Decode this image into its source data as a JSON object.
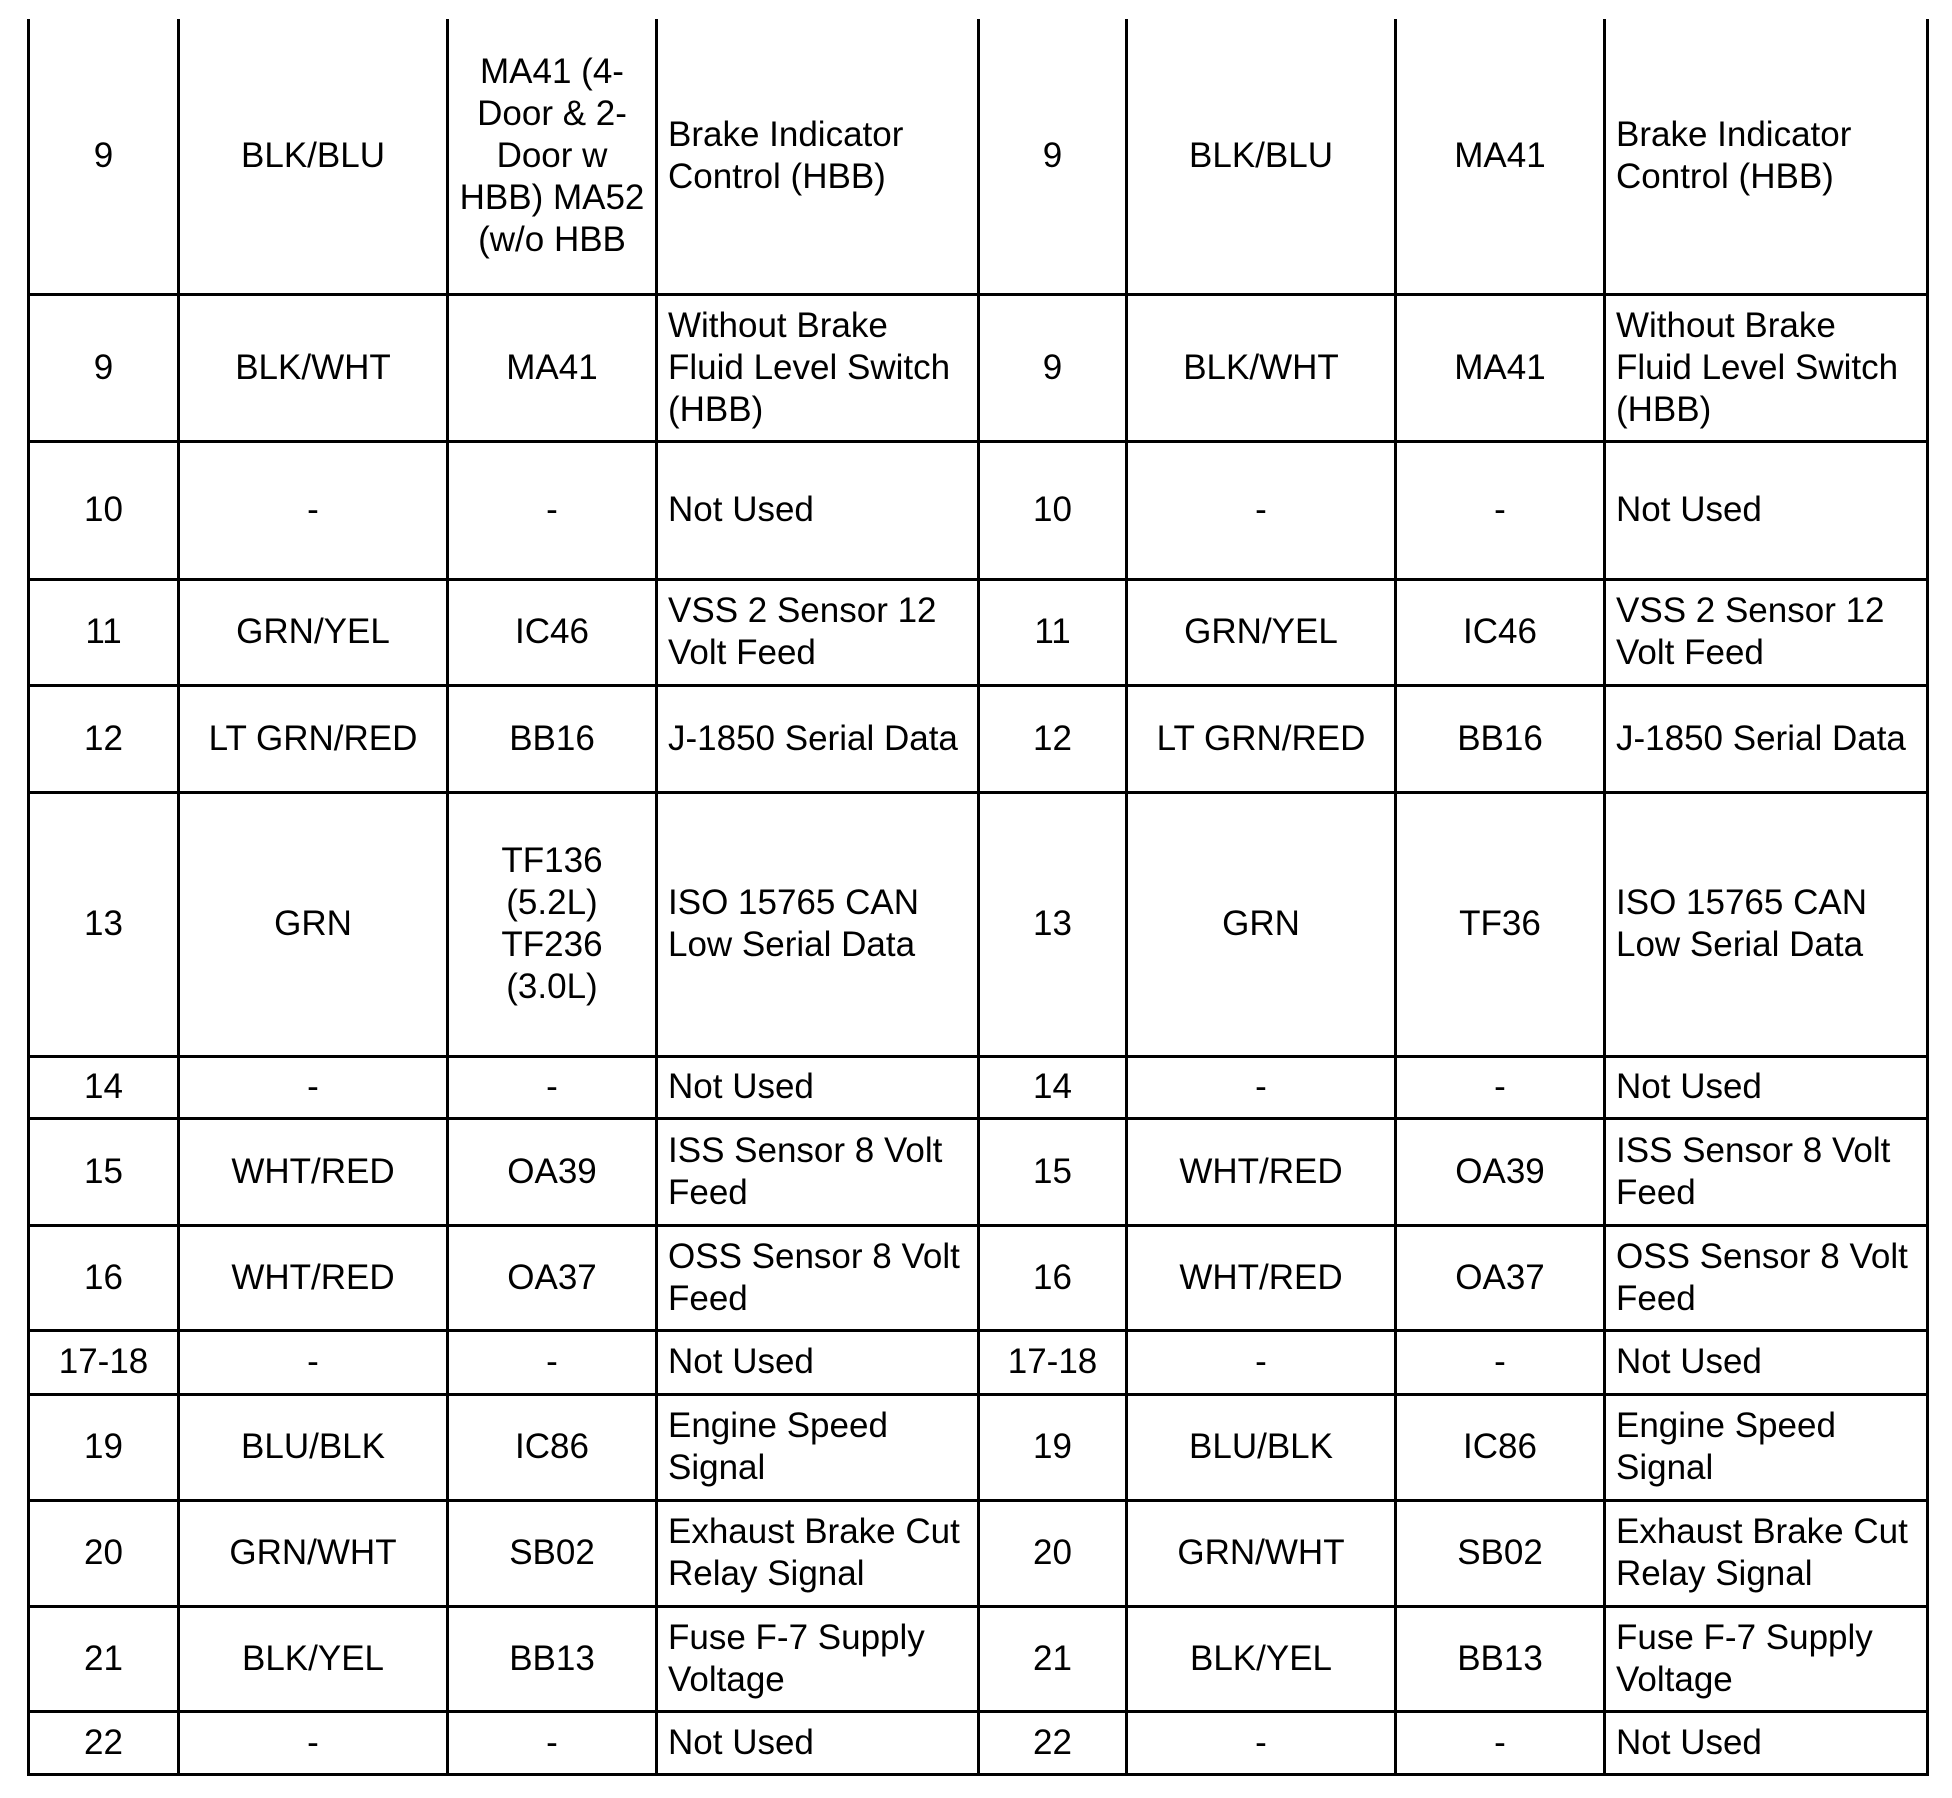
{
  "rows": [
    {
      "pin_a": "9",
      "color_a": "BLK/BLU",
      "circuit_a": "MA41 (4-Door & 2-Door w HBB) MA52 (w/o HBB",
      "function_a": "Brake Indicator Control (HBB)",
      "pin_b": "9",
      "color_b": "BLK/BLU",
      "circuit_b": "MA41",
      "function_b": "Brake Indicator Control (HBB)"
    },
    {
      "pin_a": "9",
      "color_a": "BLK/WHT",
      "circuit_a": "MA41",
      "function_a": "Without Brake Fluid Level Switch (HBB)",
      "pin_b": "9",
      "color_b": "BLK/WHT",
      "circuit_b": "MA41",
      "function_b": "Without Brake Fluid Level Switch (HBB)"
    },
    {
      "pin_a": "10",
      "color_a": "-",
      "circuit_a": "-",
      "function_a": "Not Used",
      "pin_b": "10",
      "color_b": "-",
      "circuit_b": "-",
      "function_b": "Not Used"
    },
    {
      "pin_a": "11",
      "color_a": "GRN/YEL",
      "circuit_a": "IC46",
      "function_a": "VSS 2 Sensor 12 Volt Feed",
      "pin_b": "11",
      "color_b": "GRN/YEL",
      "circuit_b": "IC46",
      "function_b": "VSS 2 Sensor 12 Volt Feed"
    },
    {
      "pin_a": "12",
      "color_a": "LT GRN/RED",
      "circuit_a": "BB16",
      "function_a": "J-1850 Serial Data",
      "pin_b": "12",
      "color_b": "LT GRN/RED",
      "circuit_b": "BB16",
      "function_b": "J-1850 Serial Data"
    },
    {
      "pin_a": "13",
      "color_a": "GRN",
      "circuit_a": "TF136 (5.2L) TF236 (3.0L)",
      "function_a": "ISO 15765 CAN Low Serial Data",
      "pin_b": "13",
      "color_b": "GRN",
      "circuit_b": "TF36",
      "function_b": "ISO 15765 CAN Low Serial Data"
    },
    {
      "pin_a": "14",
      "color_a": "-",
      "circuit_a": "-",
      "function_a": "Not Used",
      "pin_b": "14",
      "color_b": "-",
      "circuit_b": "-",
      "function_b": "Not Used"
    },
    {
      "pin_a": "15",
      "color_a": "WHT/RED",
      "circuit_a": "OA39",
      "function_a": "ISS Sensor 8 Volt Feed",
      "pin_b": "15",
      "color_b": "WHT/RED",
      "circuit_b": "OA39",
      "function_b": "ISS Sensor 8 Volt Feed"
    },
    {
      "pin_a": "16",
      "color_a": "WHT/RED",
      "circuit_a": "OA37",
      "function_a": "OSS Sensor 8 Volt Feed",
      "pin_b": "16",
      "color_b": "WHT/RED",
      "circuit_b": "OA37",
      "function_b": "OSS Sensor 8 Volt Feed"
    },
    {
      "pin_a": "17-18",
      "color_a": "-",
      "circuit_a": "-",
      "function_a": "Not Used",
      "pin_b": "17-18",
      "color_b": "-",
      "circuit_b": "-",
      "function_b": "Not Used"
    },
    {
      "pin_a": "19",
      "color_a": "BLU/BLK",
      "circuit_a": "IC86",
      "function_a": "Engine Speed Signal",
      "pin_b": "19",
      "color_b": "BLU/BLK",
      "circuit_b": "IC86",
      "function_b": "Engine Speed Signal"
    },
    {
      "pin_a": "20",
      "color_a": "GRN/WHT",
      "circuit_a": "SB02",
      "function_a": "Exhaust Brake Cut Relay Signal",
      "pin_b": "20",
      "color_b": "GRN/WHT",
      "circuit_b": "SB02",
      "function_b": "Exhaust Brake Cut Relay Signal"
    },
    {
      "pin_a": "21",
      "color_a": "BLK/YEL",
      "circuit_a": "BB13",
      "function_a": "Fuse F-7 Supply Voltage",
      "pin_b": "21",
      "color_b": "BLK/YEL",
      "circuit_b": "BB13",
      "function_b": "Fuse F-7 Supply Voltage"
    },
    {
      "pin_a": "22",
      "color_a": "-",
      "circuit_a": "-",
      "function_a": "Not Used",
      "pin_b": "22",
      "color_b": "-",
      "circuit_b": "-",
      "function_b": "Not Used"
    }
  ]
}
